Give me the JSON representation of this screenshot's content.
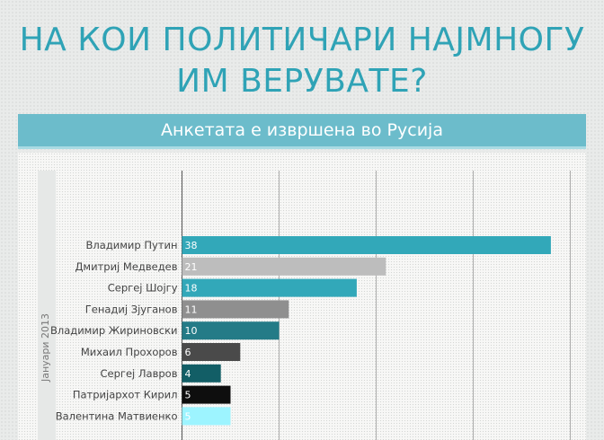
{
  "header": {
    "title_line1": "НА КОИ ПОЛИТИЧАРИ НАЈМНОГУ",
    "title_line2": "ИМ ВЕРУВАТЕ?",
    "subtitle": "Анкетата е извршена во Русија"
  },
  "chart_data": {
    "type": "bar",
    "orientation": "horizontal",
    "title": "НА КОИ ПОЛИТИЧАРИ НАЈМНОГУ ИМ ВЕРУВАТЕ?",
    "subtitle": "Анкетата е извршена во Русија",
    "period_label": "Јануари 2013",
    "categories": [
      "Владимир Путин",
      "Дмитриј Медведев",
      "Сергеј Шојгу",
      "Генадиј Зјуганов",
      "Владимир Жириновски",
      "Михаил Прохоров",
      "Сергеј Лавров",
      "Патријархот Кирил",
      "Валентина Матвиенко"
    ],
    "values": [
      38,
      21,
      18,
      11,
      10,
      6,
      4,
      5,
      5
    ],
    "bar_colors": [
      "#32a8b9",
      "#bdbdbd",
      "#32a8b9",
      "#8f8f8f",
      "#247b87",
      "#4a4a4a",
      "#125e66",
      "#0e0e0e",
      "#9df4ff"
    ],
    "xlim": [
      0,
      40
    ],
    "grid": true
  }
}
